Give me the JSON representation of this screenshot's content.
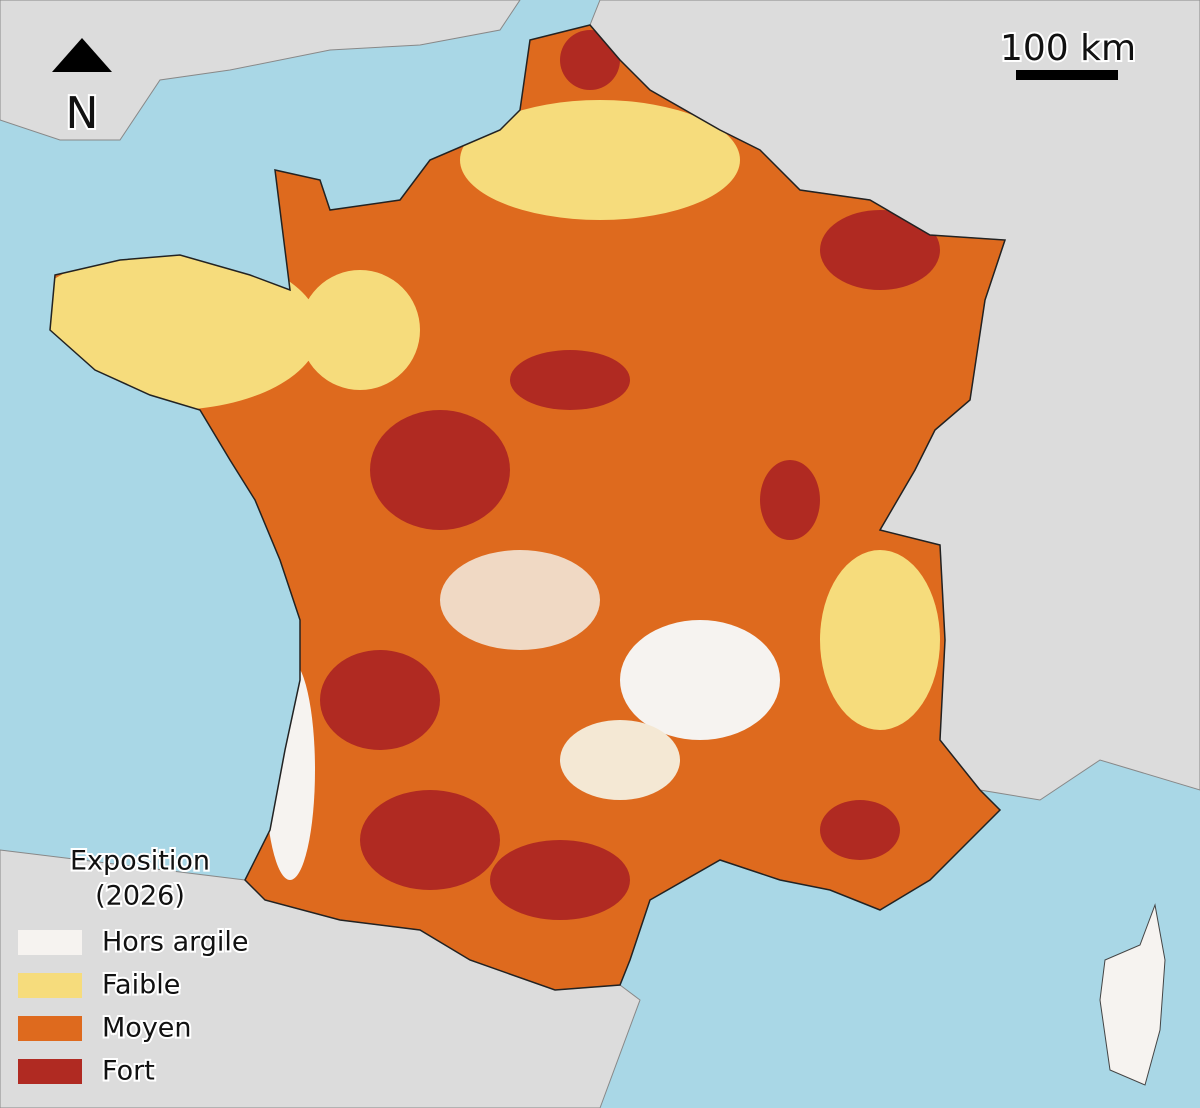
{
  "north_arrow": {
    "label": "N"
  },
  "scale_bar": {
    "label": "100 km"
  },
  "legend": {
    "title": [
      "Exposition",
      "(2026)"
    ],
    "items": [
      {
        "label": "Hors argile",
        "color": "#f6f3f0"
      },
      {
        "label": "Faible",
        "color": "#f6dc7c"
      },
      {
        "label": "Moyen",
        "color": "#de6a1e"
      },
      {
        "label": "Fort",
        "color": "#b02a22"
      }
    ]
  }
}
